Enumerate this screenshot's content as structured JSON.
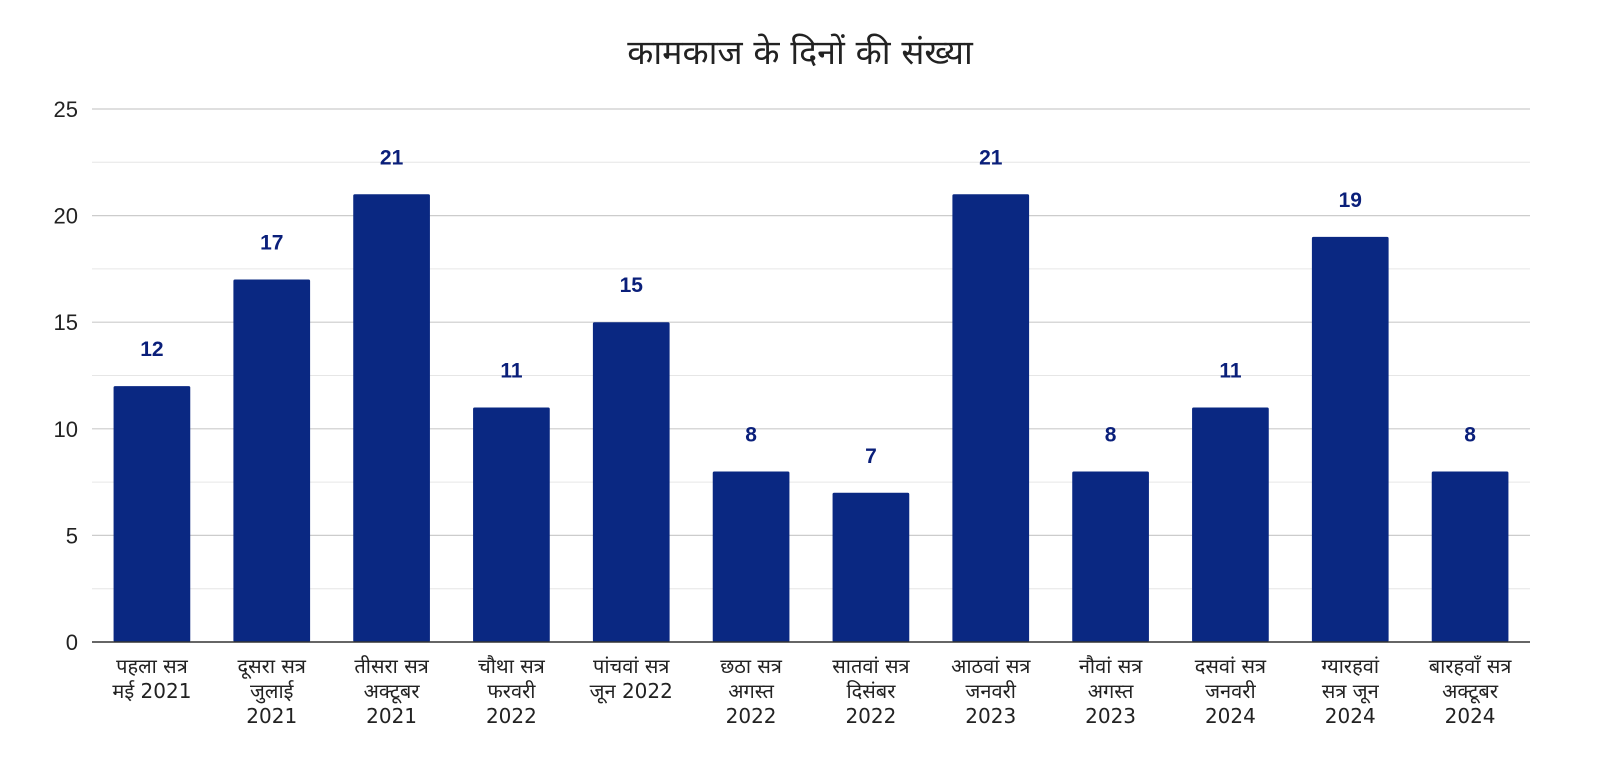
{
  "chart_data": {
    "type": "bar",
    "title": "कामकाज के दिनों की संख्या",
    "categories": [
      [
        "पहला सत्र",
        "मई 2021"
      ],
      [
        "दूसरा सत्र",
        "जुलाई",
        "2021"
      ],
      [
        "तीसरा सत्र",
        "अक्टूबर",
        "2021"
      ],
      [
        "चौथा सत्र",
        "फरवरी",
        "2022"
      ],
      [
        "पांचवां सत्र",
        "जून 2022"
      ],
      [
        "छठा सत्र",
        "अगस्त",
        "2022"
      ],
      [
        "सातवां सत्र",
        "दिसंबर",
        "2022"
      ],
      [
        "आठवां सत्र",
        "जनवरी",
        "2023"
      ],
      [
        "नौवां सत्र",
        "अगस्त",
        "2023"
      ],
      [
        "दसवां सत्र",
        "जनवरी",
        "2024"
      ],
      [
        "ग्यारहवां",
        "सत्र जून",
        "2024"
      ],
      [
        "बारहवाँ सत्र",
        "अक्टूबर",
        "2024"
      ]
    ],
    "values": [
      12,
      17,
      21,
      11,
      15,
      8,
      7,
      21,
      8,
      11,
      19,
      8
    ],
    "xlabel": "",
    "ylabel": "",
    "ylim": [
      0,
      25
    ],
    "yticks": [
      "0",
      "5",
      "10",
      "15",
      "20",
      "25"
    ],
    "grid": true,
    "bar_color": "#0a2882",
    "label_color": "#0a1f7a"
  }
}
